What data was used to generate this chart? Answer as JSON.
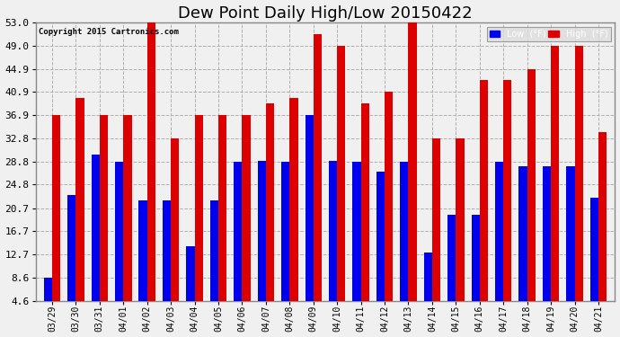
{
  "title": "Dew Point Daily High/Low 20150422",
  "copyright": "Copyright 2015 Cartronics.com",
  "categories": [
    "03/29",
    "03/30",
    "03/31",
    "04/01",
    "04/02",
    "04/03",
    "04/04",
    "04/05",
    "04/06",
    "04/07",
    "04/08",
    "04/09",
    "04/10",
    "04/11",
    "04/12",
    "04/13",
    "04/14",
    "04/15",
    "04/16",
    "04/17",
    "04/18",
    "04/19",
    "04/20",
    "04/21"
  ],
  "low_values": [
    8.6,
    23.0,
    30.0,
    28.8,
    22.0,
    22.0,
    14.0,
    22.0,
    28.8,
    29.0,
    28.8,
    36.9,
    29.0,
    28.8,
    27.0,
    28.8,
    13.0,
    19.5,
    19.5,
    28.8,
    28.0,
    28.0,
    28.0,
    22.5
  ],
  "high_values": [
    36.9,
    39.9,
    36.9,
    36.9,
    53.0,
    32.8,
    36.9,
    36.9,
    36.9,
    39.0,
    39.9,
    51.0,
    49.0,
    39.0,
    40.9,
    53.0,
    32.8,
    32.8,
    43.0,
    43.0,
    44.9,
    48.9,
    49.0,
    34.0
  ],
  "low_color": "#0000ee",
  "high_color": "#dd0000",
  "bg_color": "#f0f0f0",
  "plot_bg_color": "#f0f0f0",
  "grid_color": "#b0b0b0",
  "ylim_min": 4.6,
  "ylim_max": 53.0,
  "yticks": [
    4.6,
    8.6,
    12.7,
    16.7,
    20.7,
    24.8,
    28.8,
    32.8,
    36.9,
    40.9,
    44.9,
    49.0,
    53.0
  ],
  "title_fontsize": 13,
  "bar_width": 0.35,
  "legend_low_label": "Low  (°F)",
  "legend_high_label": "High  (°F)"
}
